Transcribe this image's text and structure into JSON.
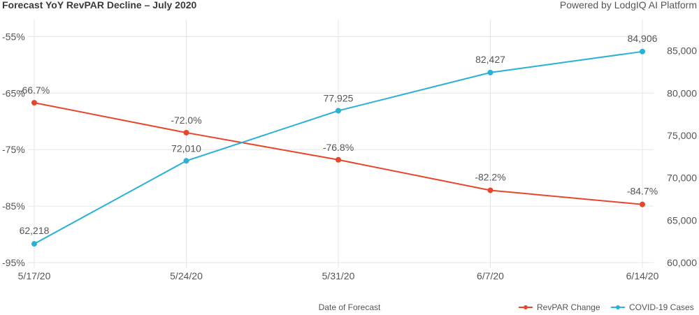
{
  "header": {
    "title": "Forecast YoY RevPAR Decline – July 2020",
    "credit": "Powered by LodgIQ AI Platform"
  },
  "chart_data": {
    "type": "line",
    "title": "Forecast YoY RevPAR Decline – July 2020",
    "xlabel": "Date of Forecast",
    "x": [
      "5/17/20",
      "5/24/20",
      "5/31/20",
      "6/7/20",
      "6/14/20"
    ],
    "y_left": {
      "ticks": [
        "-55%",
        "-65%",
        "-75%",
        "-85%",
        "-95%"
      ],
      "tick_values": [
        -55,
        -65,
        -75,
        -85,
        -95
      ],
      "ylim": [
        -95,
        -50
      ]
    },
    "y_right": {
      "ticks": [
        "85,000",
        "80,000",
        "75,000",
        "70,000",
        "65,000",
        "60,000"
      ],
      "tick_values": [
        85000,
        80000,
        75000,
        70000,
        65000,
        60000
      ],
      "ylim": [
        60000,
        90000
      ]
    },
    "series": [
      {
        "name": "RevPAR Change",
        "axis": "left",
        "color": "#e8462a",
        "values": [
          -66.7,
          -72.0,
          -76.8,
          -82.2,
          -84.7
        ],
        "labels": [
          "-66.7%",
          "-72.0%",
          "-76.8%",
          "-82.2%",
          "-84.7%"
        ]
      },
      {
        "name": "COVID-19 Cases",
        "axis": "right",
        "color": "#29b1d6",
        "values": [
          62218,
          72010,
          77925,
          82427,
          84906
        ],
        "labels": [
          "62,218",
          "72,010",
          "77,925",
          "82,427",
          "84,906"
        ]
      }
    ],
    "grid": true,
    "legend": "bottom-right"
  }
}
